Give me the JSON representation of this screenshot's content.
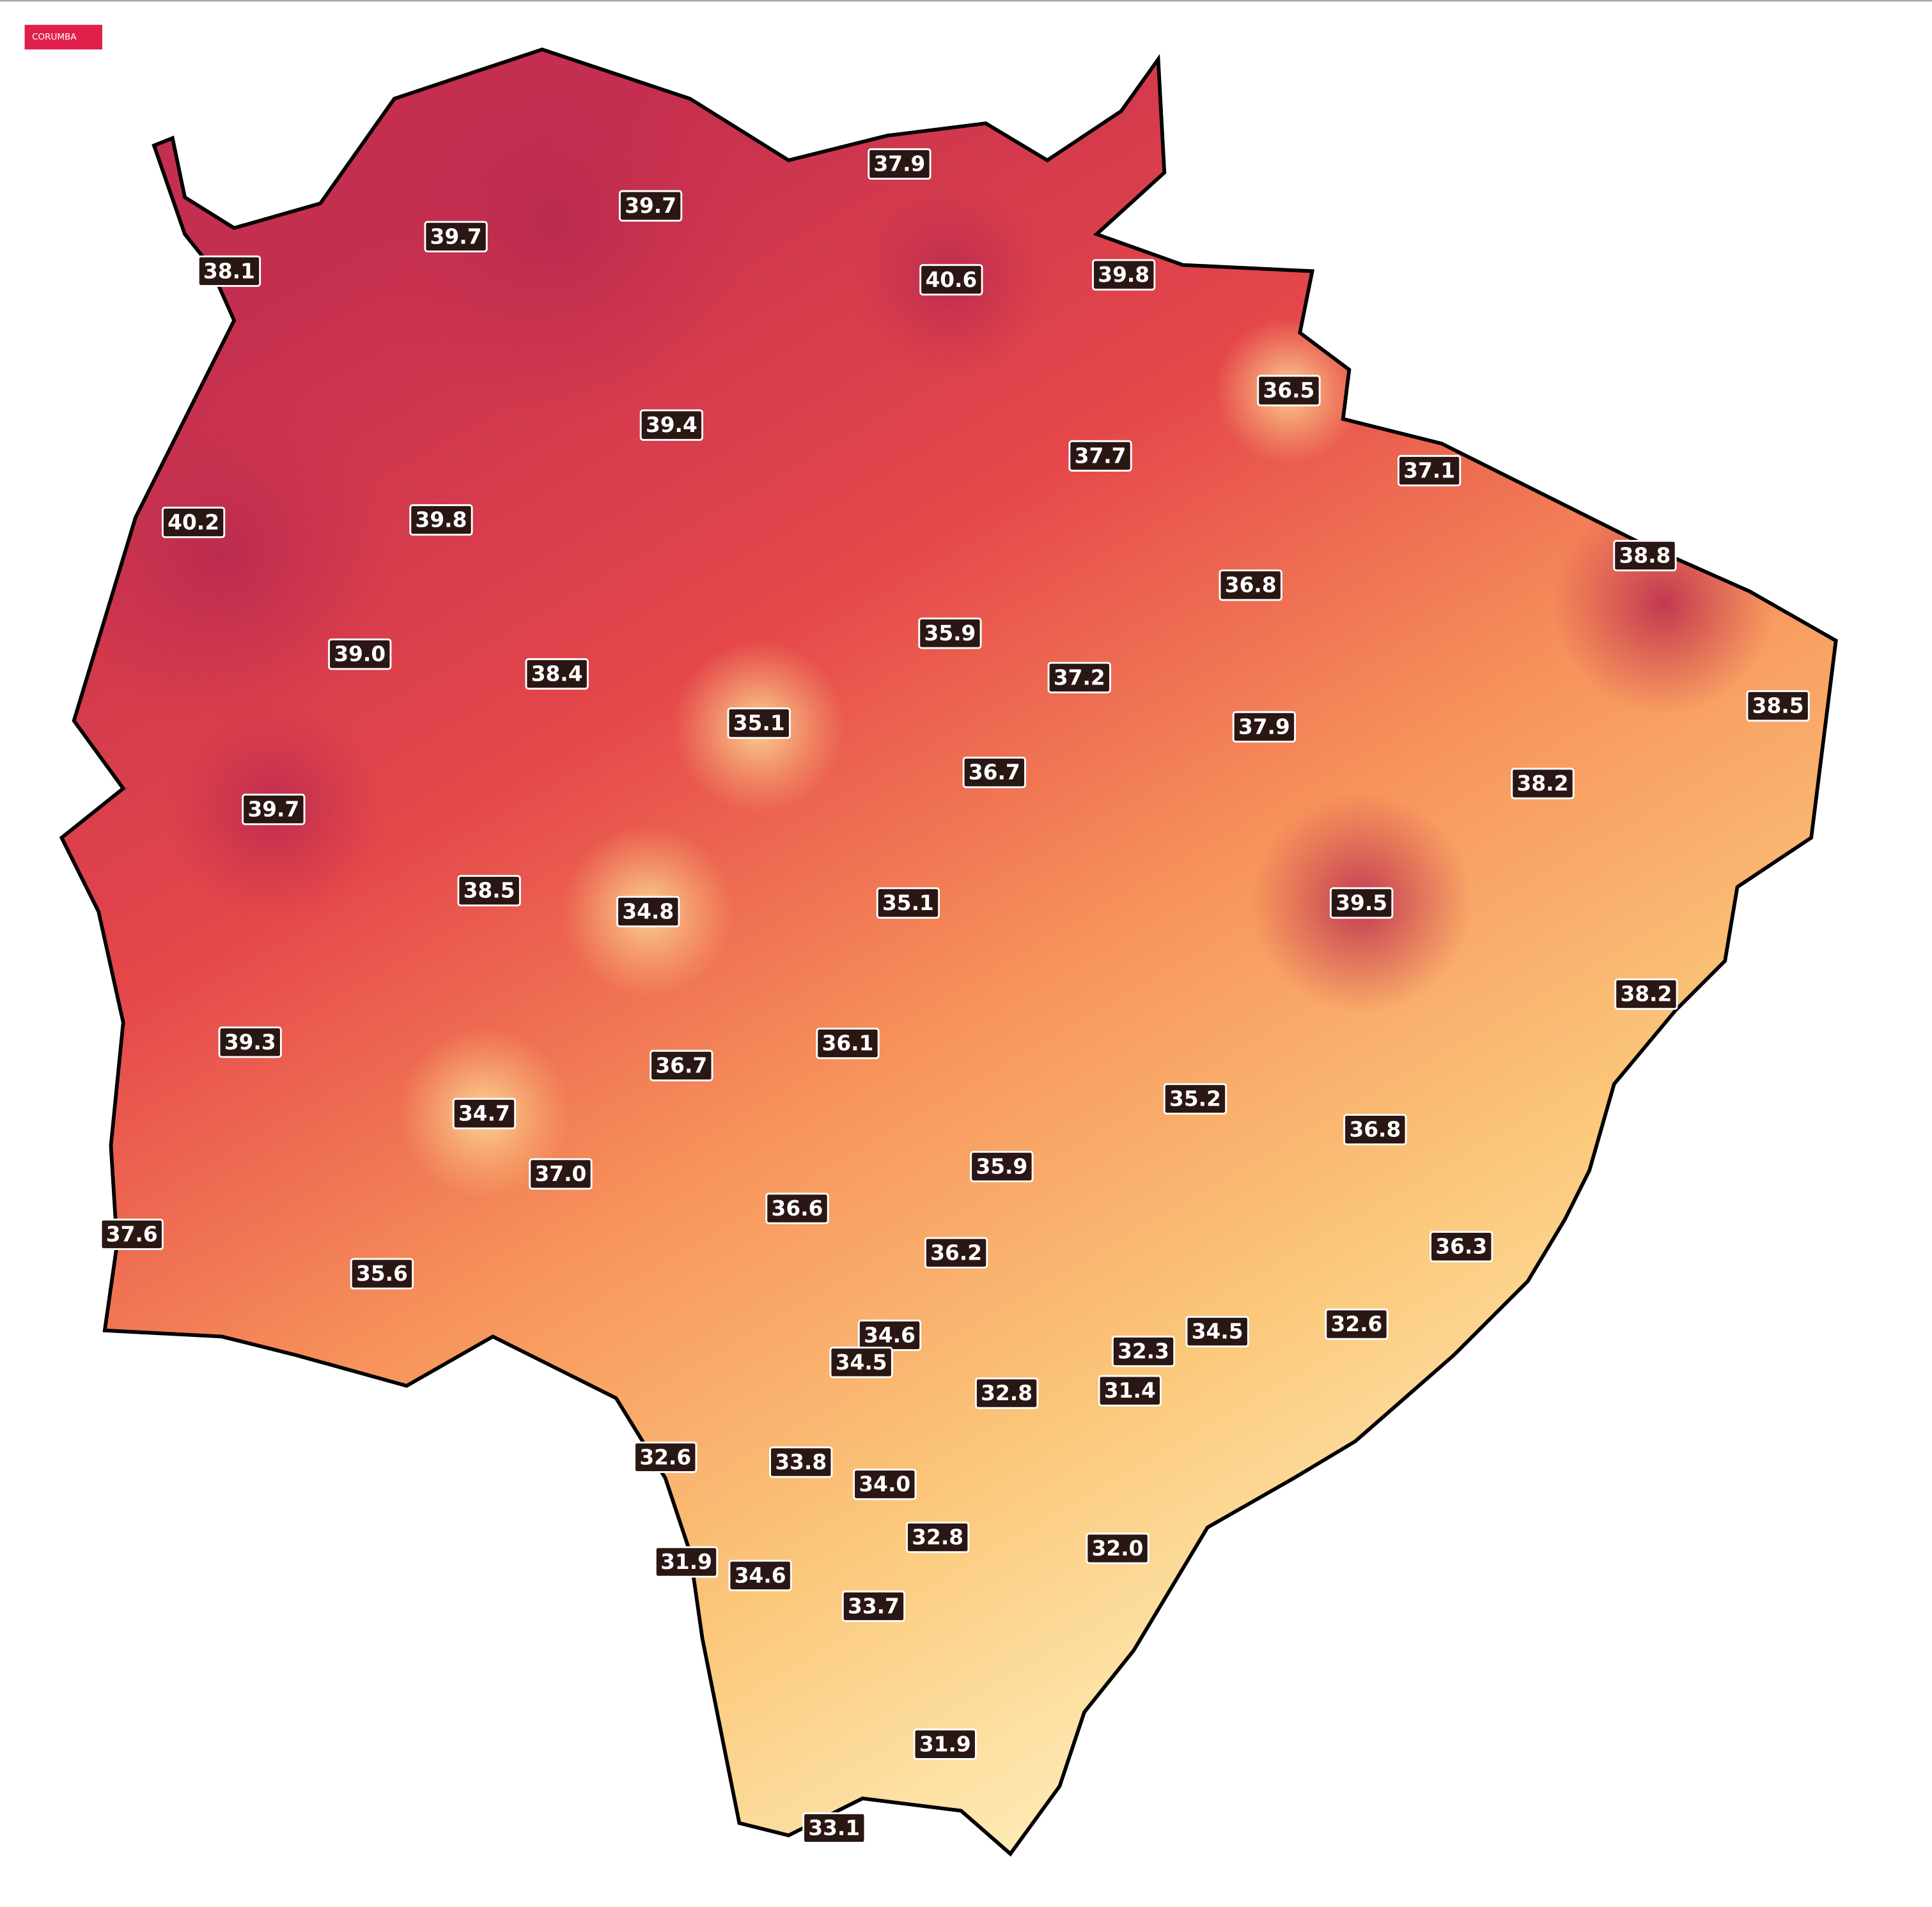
{
  "tag": "CORUMBA",
  "stations": [
    "37.9",
    "39.7",
    "39.7",
    "38.1",
    "40.6",
    "39.8",
    "36.5",
    "39.4",
    "37.7",
    "37.1",
    "40.2",
    "39.8",
    "38.8",
    "36.8",
    "35.9",
    "39.0",
    "38.4",
    "37.2",
    "38.5",
    "35.1",
    "37.9",
    "38.2",
    "36.7",
    "39.7",
    "38.5",
    "34.8",
    "35.1",
    "39.5",
    "38.2",
    "39.3",
    "36.1",
    "36.7",
    "35.2",
    "34.7",
    "36.8",
    "35.9",
    "37.0",
    "36.6",
    "37.6",
    "36.2",
    "36.3",
    "35.6",
    "34.6",
    "34.5",
    "32.6",
    "34.5",
    "32.3",
    "32.8",
    "31.4",
    "32.6",
    "33.8",
    "34.0",
    "32.8",
    "32.0",
    "31.9",
    "34.6",
    "33.7",
    "31.9",
    "33.1"
  ]
}
